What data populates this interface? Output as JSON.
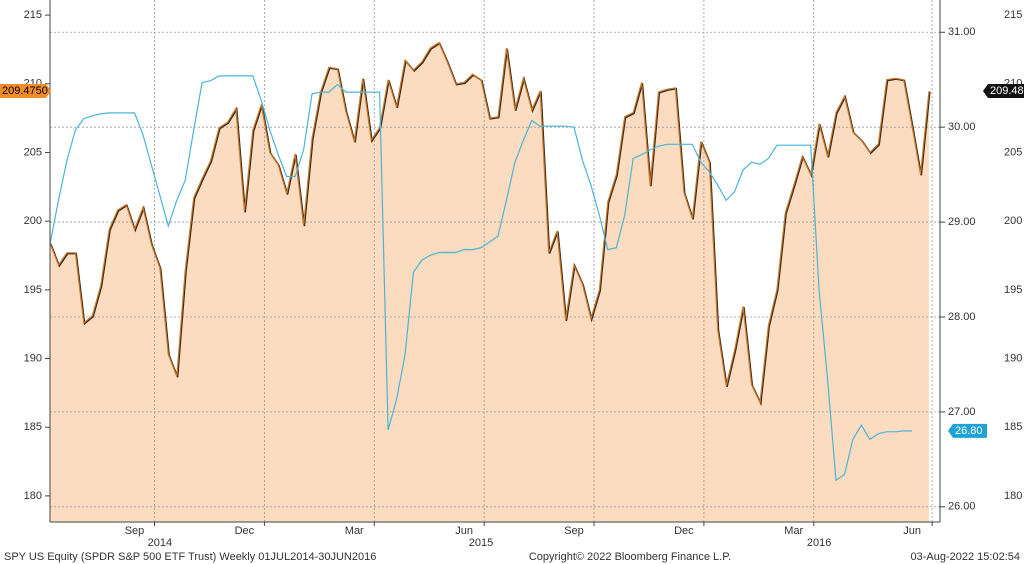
{
  "chart_data": {
    "type": "line",
    "categories": [
      null,
      null,
      null,
      null,
      null,
      null,
      null,
      null,
      null,
      null,
      "Sep",
      null,
      null,
      null,
      null,
      null,
      null,
      null,
      null,
      null,
      null,
      null,
      null,
      "Dec",
      null,
      null,
      null,
      null,
      null,
      null,
      null,
      null,
      null,
      null,
      null,
      null,
      "Mar",
      null,
      null,
      null,
      null,
      null,
      null,
      null,
      null,
      null,
      null,
      null,
      null,
      "Jun",
      null,
      null,
      null,
      null,
      null,
      null,
      null,
      null,
      null,
      null,
      null,
      null,
      "Sep",
      null,
      null,
      null,
      null,
      null,
      null,
      null,
      null,
      null,
      null,
      null,
      null,
      "Dec",
      null,
      null,
      null,
      null,
      null,
      null,
      null,
      null,
      null,
      null,
      null,
      null,
      "Mar",
      null,
      null,
      null,
      null,
      null,
      null,
      null,
      null,
      null,
      null,
      null,
      null,
      null,
      "Jun",
      null,
      null
    ],
    "year_labels": [
      null,
      null,
      null,
      null,
      null,
      null,
      null,
      null,
      null,
      null,
      null,
      null,
      null,
      "2014",
      null,
      null,
      null,
      null,
      null,
      null,
      null,
      null,
      null,
      null,
      null,
      null,
      null,
      null,
      null,
      null,
      null,
      null,
      null,
      null,
      null,
      null,
      null,
      null,
      null,
      null,
      null,
      null,
      null,
      null,
      null,
      null,
      null,
      null,
      null,
      null,
      null,
      "2015",
      null,
      null,
      null,
      null,
      null,
      null,
      null,
      null,
      null,
      null,
      null,
      null,
      null,
      null,
      null,
      null,
      null,
      null,
      null,
      null,
      null,
      null,
      null,
      null,
      null,
      null,
      null,
      null,
      null,
      null,
      null,
      null,
      null,
      null,
      null,
      null,
      null,
      null,
      null,
      "2016",
      null,
      null,
      null,
      null,
      null,
      null,
      null,
      null,
      null,
      null,
      null,
      null
    ],
    "series": [
      {
        "color": "#c8792a",
        "fill": "#fcdcc0",
        "values": [
          198.4,
          196.8,
          197.7,
          197.7,
          192.6,
          193.1,
          195.3,
          199.4,
          200.8,
          201.2,
          199.4,
          201.0,
          198.3,
          196.6,
          190.3,
          188.7,
          196.4,
          201.7,
          203.1,
          204.4,
          206.8,
          207.2,
          208.2,
          200.7,
          206.6,
          208.5,
          205.0,
          204.1,
          202.0,
          204.9,
          199.7,
          206.0,
          209.4,
          211.2,
          211.1,
          208.0,
          205.8,
          210.4,
          205.9,
          206.8,
          210.3,
          208.3,
          211.7,
          211.0,
          211.6,
          212.6,
          213.0,
          211.6,
          210.0,
          210.1,
          210.7,
          210.3,
          207.5,
          207.6,
          212.6,
          208.1,
          210.4,
          208.1,
          209.5,
          197.7,
          199.3,
          192.8,
          196.8,
          195.4,
          192.9,
          195.0,
          201.4,
          203.4,
          207.6,
          207.9,
          210.1,
          202.6,
          209.4,
          209.6,
          209.7,
          202.1,
          200.2,
          205.8,
          204.3,
          192.1,
          188.0,
          190.6,
          193.8,
          188.1,
          186.8,
          192.4,
          195.0,
          200.6,
          202.6,
          204.7,
          203.4,
          207.1,
          204.7,
          207.9,
          209.1,
          206.5,
          205.9,
          205.0,
          205.6,
          210.3,
          210.4,
          210.3,
          206.9,
          203.4,
          209.475
        ],
        "value_tag_left": "209.4750",
        "value_tag_right": "209.48"
      },
      {
        "color": "#4bb4d6",
        "axis": "y2",
        "values": [
          28.77,
          29.23,
          29.65,
          29.97,
          30.09,
          30.12,
          30.14,
          30.15,
          30.15,
          30.15,
          30.15,
          29.92,
          29.6,
          29.28,
          28.96,
          29.23,
          29.44,
          29.97,
          30.47,
          30.49,
          30.54,
          30.54,
          30.54,
          30.54,
          30.54,
          30.28,
          29.97,
          29.71,
          29.48,
          29.48,
          29.76,
          30.35,
          30.37,
          30.37,
          30.45,
          30.37,
          30.37,
          30.37,
          30.37,
          30.37,
          26.81,
          27.13,
          27.6,
          28.47,
          28.6,
          28.65,
          28.68,
          28.68,
          28.68,
          28.71,
          28.71,
          28.73,
          28.79,
          28.85,
          29.23,
          29.63,
          29.86,
          30.07,
          30.01,
          30.01,
          30.01,
          30.01,
          30.0,
          29.65,
          29.39,
          29.07,
          28.71,
          28.73,
          29.07,
          29.67,
          29.71,
          29.76,
          29.8,
          29.82,
          29.82,
          29.82,
          29.82,
          29.63,
          29.53,
          29.39,
          29.23,
          29.32,
          29.55,
          29.63,
          29.61,
          29.67,
          29.81,
          29.81,
          29.81,
          29.81,
          29.81,
          28.28,
          27.34,
          26.28,
          26.34,
          26.71,
          26.86,
          26.71,
          26.77,
          26.79,
          26.79,
          26.8,
          26.8,
          null,
          null
        ],
        "value_tag_right": "26.80"
      }
    ],
    "ylim": [
      178.1,
      216.1
    ],
    "yticks": [
      180,
      185,
      190,
      195,
      200,
      205,
      210,
      215
    ],
    "y2lim": [
      25.84,
      31.34
    ],
    "y2ticks": [
      {
        "value": 26,
        "label": "26.00"
      },
      {
        "value": 27,
        "label": "27.00"
      },
      {
        "value": 28,
        "label": "28.00"
      },
      {
        "value": 29,
        "label": "29.00"
      },
      {
        "value": 30,
        "label": "30.00"
      },
      {
        "value": 31,
        "label": "31.00"
      }
    ],
    "grid": true
  },
  "footer": {
    "left": "SPY US Equity (SPDR S&P 500 ETF Trust)  Weekly 01JUL2014-30JUN2016",
    "center": "Copyright© 2022 Bloomberg Finance L.P.",
    "right": "03-Aug-2022 15:02:54"
  }
}
